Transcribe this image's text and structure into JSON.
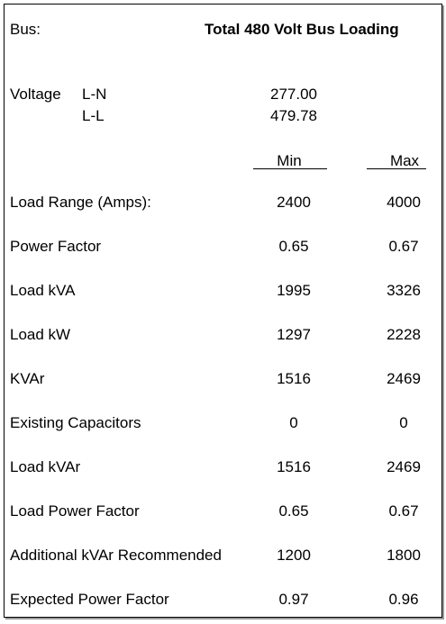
{
  "bus": {
    "label": "Bus:",
    "title": "Total 480 Volt Bus Loading"
  },
  "voltage": {
    "label": "Voltage",
    "ln_label": "L-N",
    "ln_value": "277.00",
    "ll_label": "L-L",
    "ll_value": "479.78"
  },
  "columns": {
    "min": "Min",
    "max": "Max"
  },
  "rows": [
    {
      "label": "Load Range (Amps):",
      "min": "2400",
      "max": "4000"
    },
    {
      "label": "Power Factor",
      "min": "0.65",
      "max": "0.67"
    },
    {
      "label": "Load kVA",
      "min": "1995",
      "max": "3326"
    },
    {
      "label": "Load kW",
      "min": "1297",
      "max": "2228"
    },
    {
      "label": "KVAr",
      "min": "1516",
      "max": "2469"
    },
    {
      "label": "Existing Capacitors",
      "min": "0",
      "max": "0"
    },
    {
      "label": "Load kVAr",
      "min": "1516",
      "max": "2469"
    },
    {
      "label": "Load Power Factor",
      "min": "0.65",
      "max": "0.67"
    },
    {
      "label": "Additional kVAr Recommended",
      "min": "1200",
      "max": "1800"
    },
    {
      "label": "Expected Power Factor",
      "min": "0.97",
      "max": "0.96"
    }
  ]
}
